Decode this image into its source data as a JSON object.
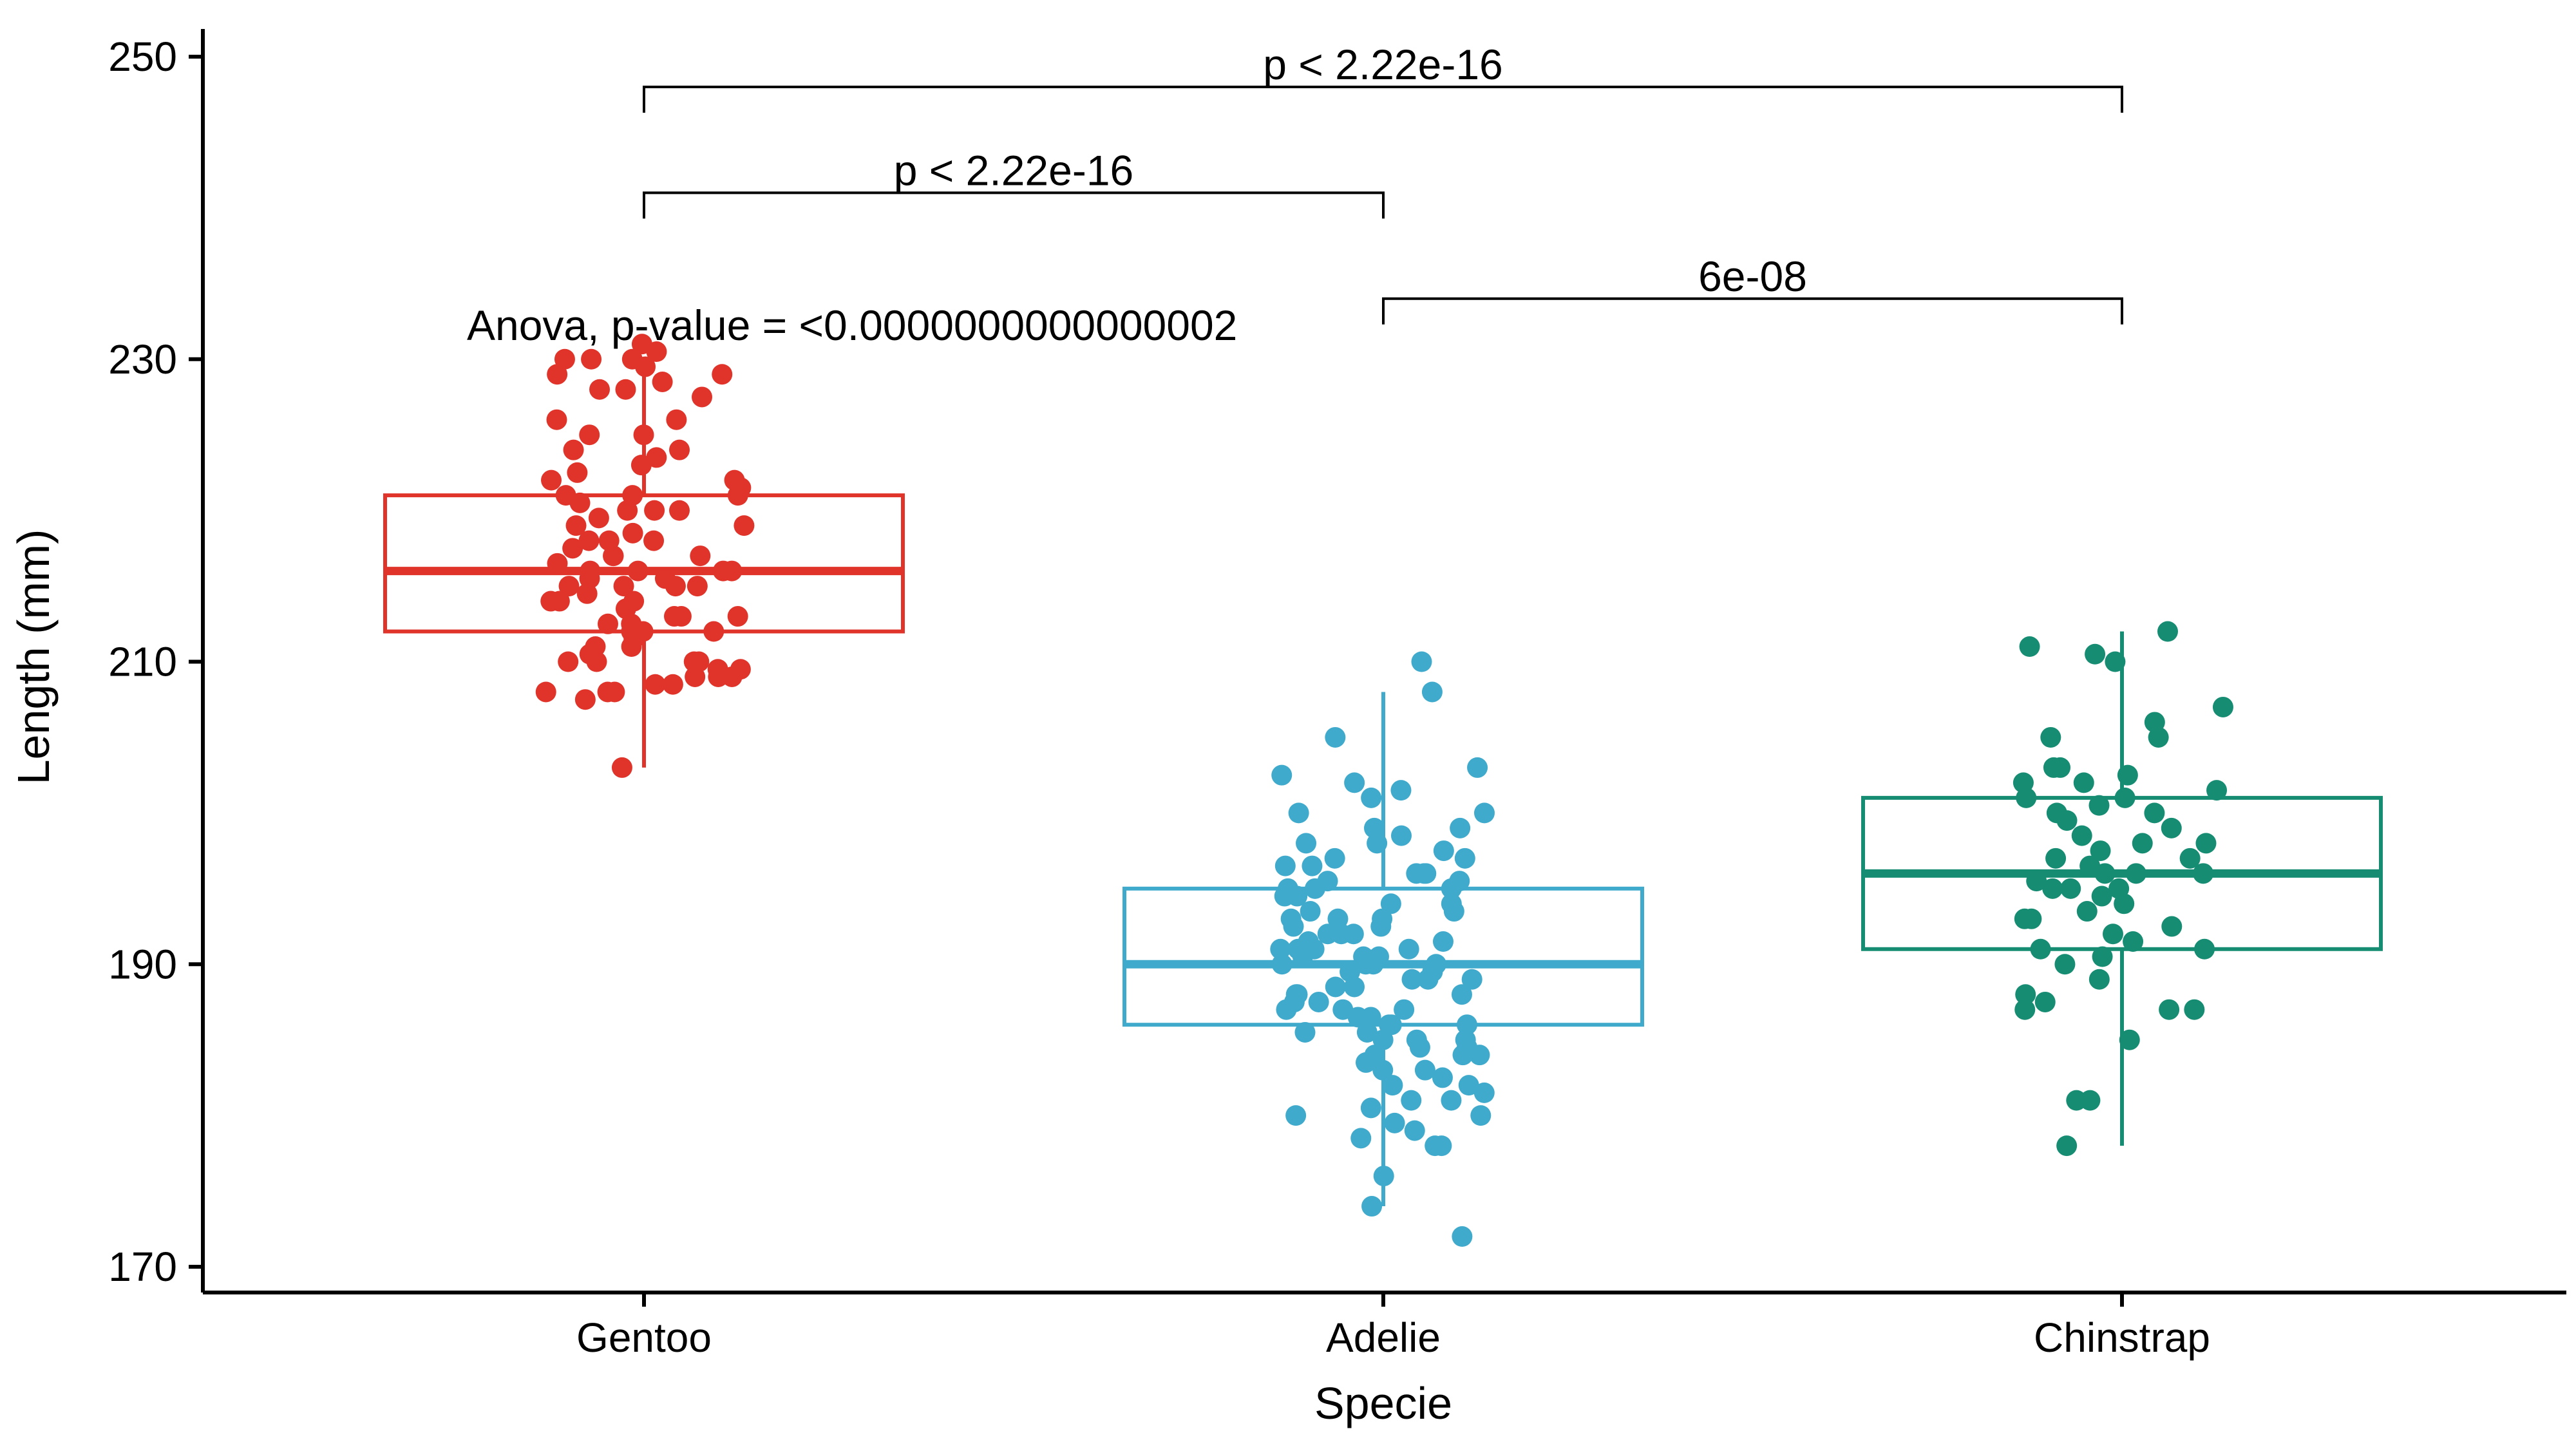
{
  "chart_data": {
    "type": "box",
    "xlabel": "Specie",
    "ylabel": "Length (mm)",
    "ylim": [
      169,
      252
    ],
    "yticks": [
      "170",
      "190",
      "210",
      "230",
      "250"
    ],
    "grid": false,
    "legend": "none",
    "categories": [
      "Gentoo",
      "Adelie",
      "Chinstrap"
    ],
    "series": [
      {
        "category": "Gentoo",
        "color": "#E0342A",
        "box": {
          "min": 203,
          "q1": 212,
          "median": 216,
          "q3": 221,
          "max": 230
        },
        "points": [
          231,
          230.5,
          230,
          230,
          230,
          229.5,
          229,
          229,
          228.5,
          228,
          228,
          227.5,
          226,
          226,
          225,
          225,
          224,
          224,
          223.5,
          223,
          222.5,
          222,
          222,
          221.5,
          221,
          221,
          221,
          220.5,
          220,
          220,
          220,
          219.5,
          219,
          219,
          218.5,
          218,
          218,
          218,
          217.5,
          217,
          217,
          217,
          216.5,
          216,
          216,
          216,
          216,
          215.5,
          215.5,
          215,
          215,
          215,
          215,
          214.5,
          214,
          214,
          214,
          213.5,
          213,
          213,
          213,
          212.5,
          212.5,
          212,
          212,
          212,
          211.5,
          211,
          211,
          210.5,
          210,
          210,
          210,
          210,
          209.5,
          209.5,
          209,
          209,
          209,
          208.5,
          208.5,
          208,
          208,
          208,
          207.5,
          203
        ]
      },
      {
        "category": "Adelie",
        "color": "#3FAACC",
        "box": {
          "min": 174,
          "q1": 186,
          "median": 190,
          "q3": 195,
          "max": 208
        },
        "points": [
          210,
          208,
          205,
          203,
          202.5,
          202,
          201.5,
          201,
          200,
          200,
          199,
          199,
          198.5,
          198,
          198,
          197.5,
          197,
          197,
          196.5,
          196.5,
          196,
          196,
          196,
          195.5,
          195.5,
          195,
          195,
          195,
          194.5,
          194.5,
          194,
          194,
          193.5,
          193.5,
          193,
          193,
          193,
          192.5,
          192.5,
          192,
          192,
          192,
          191.5,
          191.5,
          191,
          191,
          191,
          191,
          190.5,
          190.5,
          190.5,
          190,
          190,
          190,
          190,
          189.5,
          189.5,
          189,
          189,
          189,
          188.5,
          188.5,
          188,
          188,
          188,
          187.5,
          187.5,
          187,
          187,
          187,
          186.5,
          186.5,
          186,
          186,
          186,
          185.5,
          185.5,
          185,
          185,
          185,
          184.5,
          184.5,
          184,
          184,
          184,
          183.5,
          183,
          183,
          182.5,
          182,
          182,
          181.5,
          181,
          181,
          180.5,
          180,
          180,
          179.5,
          179,
          178.5,
          178,
          178,
          176,
          174,
          172
        ]
      },
      {
        "category": "Chinstrap",
        "color": "#168D73",
        "box": {
          "min": 178,
          "q1": 191,
          "median": 196,
          "q3": 201,
          "max": 212
        },
        "points": [
          212,
          211,
          210.5,
          210,
          207,
          206,
          205,
          205,
          203,
          203,
          202.5,
          202,
          202,
          201.5,
          201,
          201,
          200.5,
          200,
          200,
          199.5,
          199,
          198.5,
          198,
          198,
          197.5,
          197,
          197,
          196.5,
          196,
          196,
          196,
          195.5,
          195,
          195,
          195,
          194.5,
          194,
          193.5,
          193,
          193,
          192.5,
          192,
          191.5,
          191,
          191,
          190.5,
          190,
          189,
          188,
          187.5,
          187,
          187,
          187,
          185,
          181,
          181,
          178
        ]
      }
    ],
    "comparisons": [
      {
        "from": "Gentoo",
        "to": "Chinstrap",
        "label": "p < 2.22e-16",
        "y": 248
      },
      {
        "from": "Gentoo",
        "to": "Adelie",
        "label": "p < 2.22e-16",
        "y": 241
      },
      {
        "from": "Adelie",
        "to": "Chinstrap",
        "label": "6e-08",
        "y": 234
      }
    ],
    "annotation": "Anova, p-value = <0.0000000000000002"
  }
}
